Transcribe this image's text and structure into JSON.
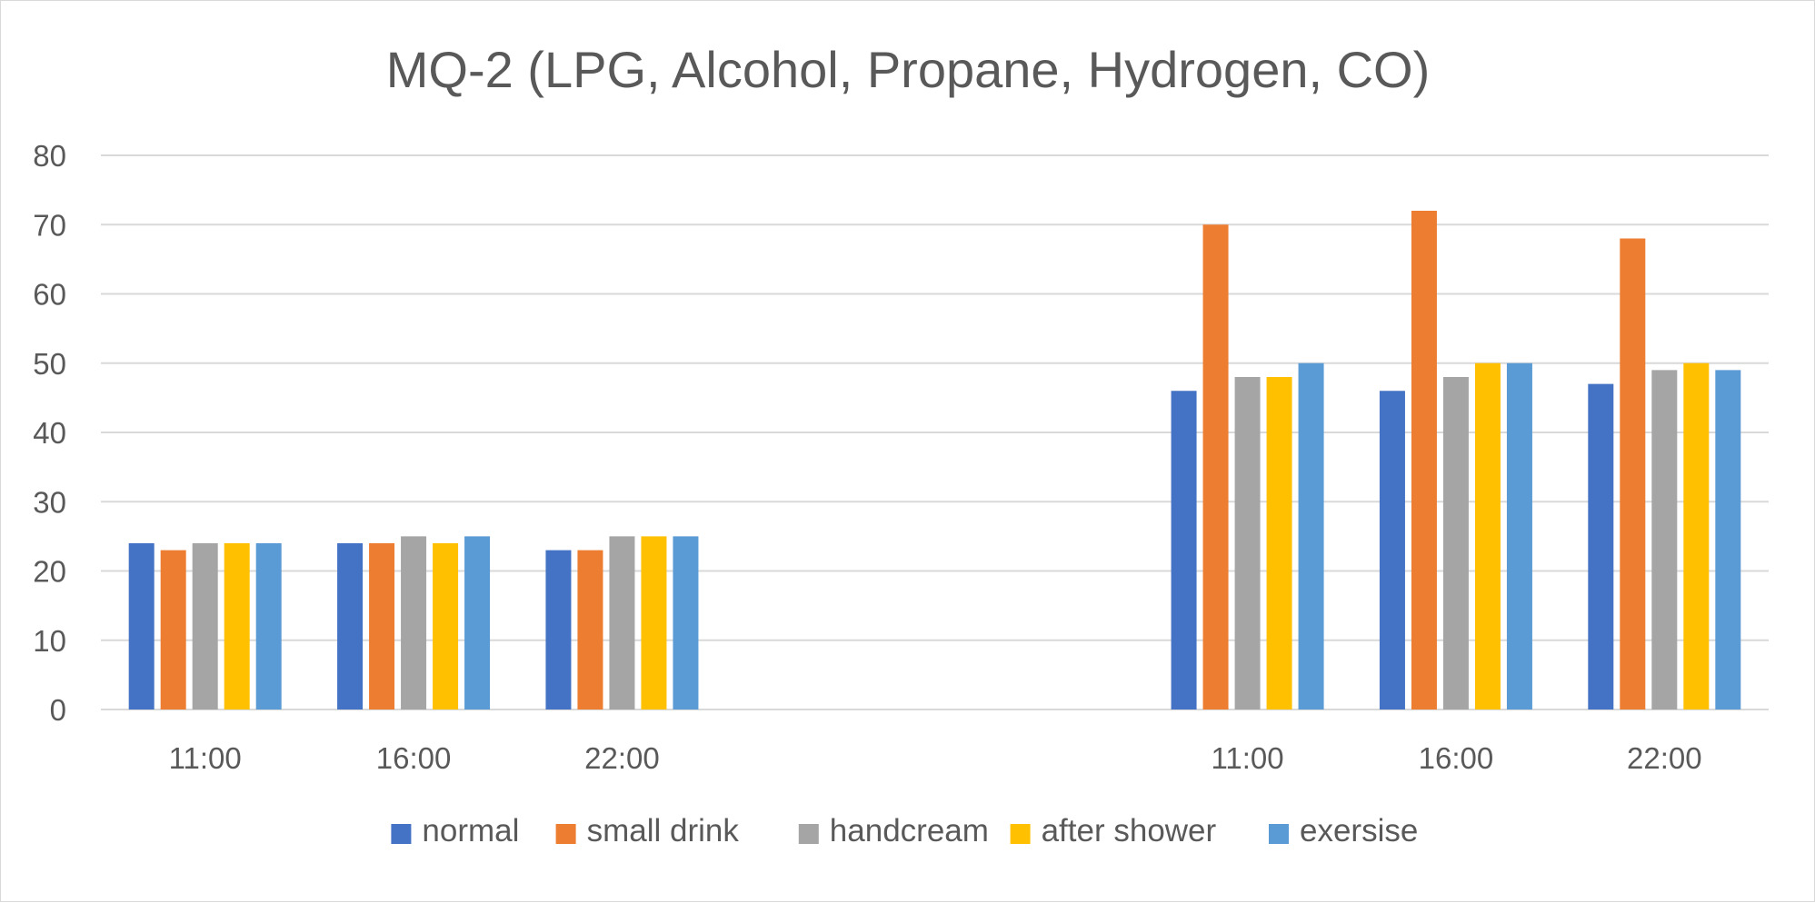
{
  "chart_data": {
    "type": "bar",
    "title": "MQ-2 (LPG, Alcohol, Propane, Hydrogen, CO)",
    "xlabel": "",
    "ylabel": "",
    "ylim": [
      0,
      80
    ],
    "yticks": [
      0,
      10,
      20,
      30,
      40,
      50,
      60,
      70,
      80
    ],
    "grid": true,
    "legend_position": "bottom",
    "categories": [
      "11:00",
      "16:00",
      "22:00",
      "",
      "",
      "11:00",
      "16:00",
      "22:00"
    ],
    "series": [
      {
        "name": "normal",
        "color": "#4472C4",
        "values": [
          24,
          24,
          23,
          null,
          null,
          46,
          46,
          47
        ]
      },
      {
        "name": "small drink",
        "color": "#ED7D31",
        "values": [
          23,
          24,
          23,
          null,
          null,
          70,
          72,
          68
        ]
      },
      {
        "name": "handcream",
        "color": "#A5A5A5",
        "values": [
          24,
          25,
          25,
          null,
          null,
          48,
          48,
          49
        ]
      },
      {
        "name": "after shower",
        "color": "#FFC000",
        "values": [
          24,
          24,
          25,
          null,
          null,
          48,
          50,
          50
        ]
      },
      {
        "name": "exersise",
        "color": "#5B9BD5",
        "values": [
          24,
          25,
          25,
          null,
          null,
          50,
          50,
          49
        ]
      }
    ]
  }
}
